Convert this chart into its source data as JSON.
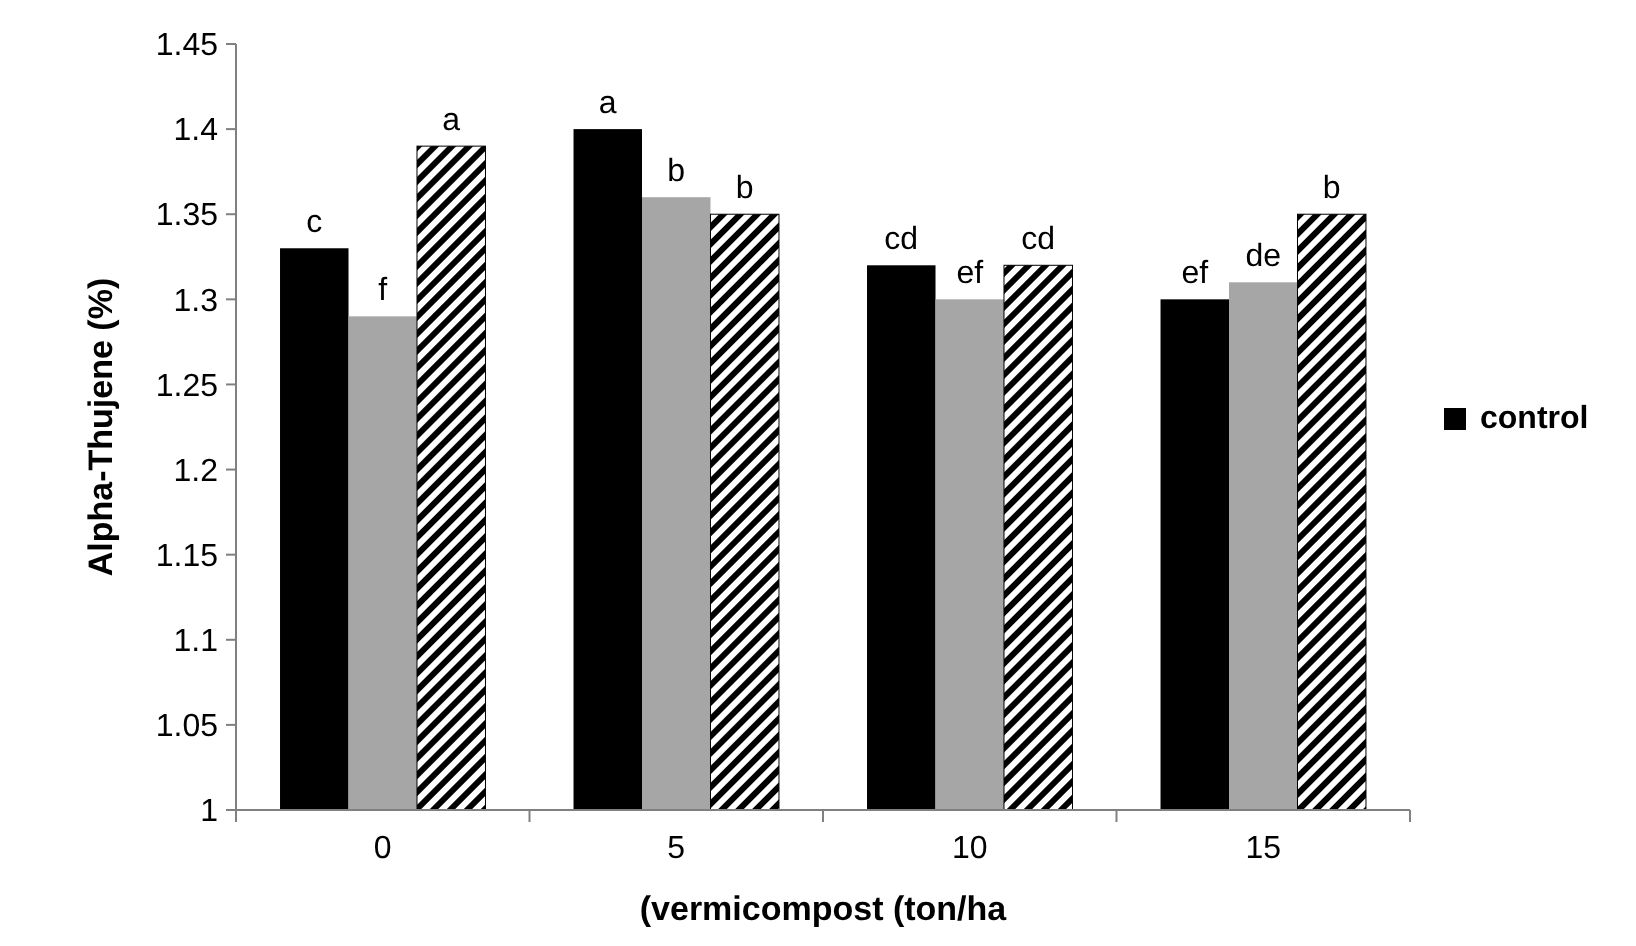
{
  "chart_data": {
    "type": "bar",
    "xlabel": "(vermicompost (ton/ha",
    "ylabel": "Alpha-Thujene (%)",
    "categories": [
      "0",
      "5",
      "10",
      "15"
    ],
    "series": [
      {
        "name": "control",
        "color": "#000000",
        "values": [
          1.33,
          1.4,
          1.32,
          1.3
        ]
      },
      {
        "color": "#a6a6a6",
        "values": [
          1.29,
          1.36,
          1.3,
          1.31
        ]
      },
      {
        "color": "#000000",
        "values": [
          1.39,
          1.35,
          1.32,
          1.35
        ]
      }
    ],
    "ylim": [
      1,
      1.45
    ],
    "yticks": [
      1,
      1.05,
      1.1,
      1.15,
      1.2,
      1.25,
      1.3,
      1.35,
      1.4,
      1.45
    ],
    "grid": false,
    "legend": "right",
    "annotations": [
      "c",
      "f",
      "a",
      "a",
      "b",
      "b",
      "cd",
      "ef",
      "cd",
      "ef",
      "de",
      "b"
    ]
  }
}
